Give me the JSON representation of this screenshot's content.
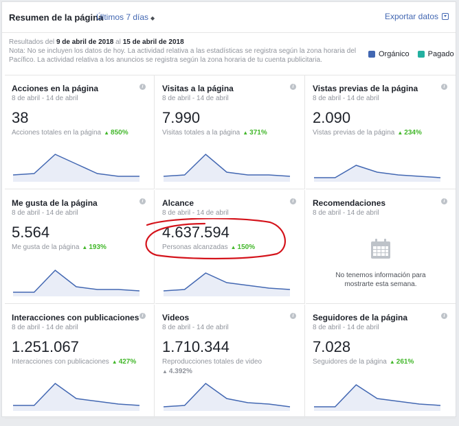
{
  "header": {
    "title": "Resumen de la página",
    "range": "Últimos 7 días",
    "export": "Exportar datos"
  },
  "info": {
    "results_prefix": "Resultados del",
    "start": "9 de abril de 2018",
    "mid": "al",
    "end": "15 de abril de 2018",
    "note": "Nota: No se incluyen los datos de hoy. La actividad relativa a las estadísticas se registra según la zona horaria del Pacífico. La actividad relativa a los anuncios se registra según la zona horaria de tu cuenta publicitaria."
  },
  "legend": [
    {
      "label": "Orgánico",
      "color": "#4267b2"
    },
    {
      "label": "Pagado",
      "color": "#23b0a0"
    }
  ],
  "cards": [
    {
      "title": "Acciones en la página",
      "date": "8 de abril - 14 de abril",
      "value": "38",
      "sub": "Acciones totales en la página",
      "change": "850%",
      "spark": [
        0.2,
        0.25,
        0.95,
        0.6,
        0.25,
        0.15,
        0.15
      ]
    },
    {
      "title": "Visitas a la página",
      "date": "8 de abril - 14 de abril",
      "value": "7.990",
      "sub": "Visitas totales a la página",
      "change": "371%",
      "spark": [
        0.15,
        0.2,
        0.95,
        0.3,
        0.2,
        0.2,
        0.15
      ]
    },
    {
      "title": "Vistas previas de la página",
      "date": "8 de abril - 14 de abril",
      "value": "2.090",
      "sub": "Vistas previas de la página",
      "change": "234%",
      "spark": [
        0.1,
        0.1,
        0.55,
        0.3,
        0.2,
        0.15,
        0.1
      ]
    },
    {
      "title": "Me gusta de la página",
      "date": "8 de abril - 14 de abril",
      "value": "5.564",
      "sub": "Me gusta de la página",
      "change": "193%",
      "spark": [
        0.1,
        0.1,
        0.9,
        0.3,
        0.2,
        0.2,
        0.15
      ]
    },
    {
      "title": "Alcance",
      "date": "8 de abril - 14 de abril",
      "value": "4.637.594",
      "sub": "Personas alcanzadas",
      "change": "150%",
      "spark": [
        0.15,
        0.2,
        0.8,
        0.45,
        0.35,
        0.25,
        0.2
      ]
    },
    {
      "title": "Recomendaciones",
      "date": "8 de abril - 14 de abril",
      "empty": "No tenemos información para mostrarte esta semana."
    },
    {
      "title": "Interacciones con publicaciones",
      "date": "8 de abril - 14 de abril",
      "value": "1.251.067",
      "sub": "Interacciones con publicaciones",
      "change": "427%",
      "spark": [
        0.15,
        0.15,
        0.95,
        0.4,
        0.3,
        0.2,
        0.15
      ]
    },
    {
      "title": "Videos",
      "date": "8 de abril - 14 de abril",
      "value": "1.710.344",
      "sub": "Reproducciones totales de video",
      "change": "4.392%",
      "spark": [
        0.1,
        0.15,
        0.95,
        0.4,
        0.25,
        0.2,
        0.1
      ]
    },
    {
      "title": "Seguidores de la página",
      "date": "8 de abril - 14 de abril",
      "value": "7.028",
      "sub": "Seguidores de la página",
      "change": "261%",
      "spark": [
        0.1,
        0.1,
        0.9,
        0.4,
        0.3,
        0.2,
        0.15
      ]
    }
  ]
}
